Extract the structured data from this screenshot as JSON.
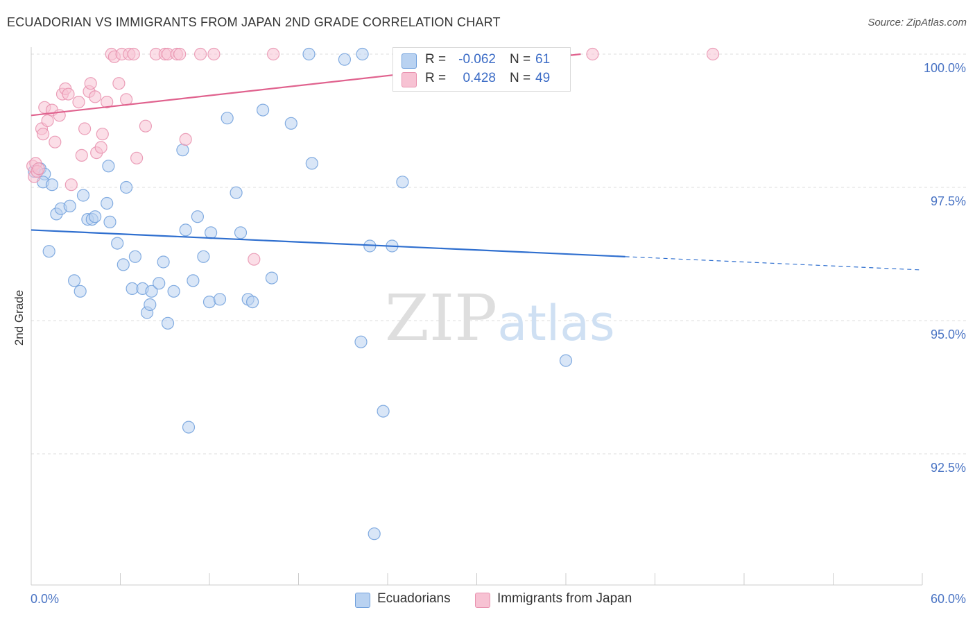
{
  "title": "ECUADORIAN VS IMMIGRANTS FROM JAPAN 2ND GRADE CORRELATION CHART",
  "source": "Source: ZipAtlas.com",
  "watermark": {
    "zip": "ZIP",
    "atlas": "atlas"
  },
  "legend": {
    "rows": [
      {
        "r_label": "R =",
        "r_value": "-0.062",
        "n_label": "N =",
        "n_value": "61"
      },
      {
        "r_label": "R =",
        "r_value": "0.428",
        "n_label": "N =",
        "n_value": "49"
      }
    ]
  },
  "bottom_legend": [
    "Ecuadorians",
    "Immigrants from Japan"
  ],
  "colors": {
    "blue_fill": "#b9d2f1",
    "blue_edge": "#6f9fdc",
    "blue_line": "#2f6fcf",
    "pink_fill": "#f7c2d3",
    "pink_edge": "#e890ae",
    "pink_line": "#e0628e",
    "tick_text": "#4a74c4",
    "grid": "#dddddd"
  },
  "chart_data": {
    "type": "scatter",
    "title": "ECUADORIAN VS IMMIGRANTS FROM JAPAN 2ND GRADE CORRELATION CHART",
    "xlabel": "",
    "ylabel": "2nd Grade",
    "xlim": [
      0,
      60
    ],
    "ylim": [
      90.0,
      100.4
    ],
    "x_tick_labels": [
      "0.0%",
      "60.0%"
    ],
    "y_ticks": [
      92.5,
      95.0,
      97.5,
      100.0
    ],
    "y_tick_labels": [
      "92.5%",
      "95.0%",
      "97.5%",
      "100.0%"
    ],
    "grid": true,
    "legend_position": "top-center",
    "series": [
      {
        "name": "Ecuadorians",
        "R": -0.062,
        "N": 61,
        "trend": {
          "x0": 0,
          "y0": 96.7,
          "x1": 40.0,
          "y1": 96.2,
          "dashed_to_x": 60,
          "dashed_y": 95.95
        },
        "points": [
          [
            0.2,
            97.8
          ],
          [
            0.6,
            97.85
          ],
          [
            0.9,
            97.75
          ],
          [
            0.8,
            97.6
          ],
          [
            1.4,
            97.55
          ],
          [
            1.7,
            97.0
          ],
          [
            2.0,
            97.1
          ],
          [
            2.6,
            97.15
          ],
          [
            3.5,
            97.35
          ],
          [
            3.8,
            96.9
          ],
          [
            4.1,
            96.9
          ],
          [
            4.3,
            96.95
          ],
          [
            5.1,
            97.2
          ],
          [
            5.2,
            97.9
          ],
          [
            5.3,
            96.85
          ],
          [
            5.8,
            96.45
          ],
          [
            6.2,
            96.05
          ],
          [
            6.4,
            97.5
          ],
          [
            6.8,
            95.6
          ],
          [
            7.0,
            96.2
          ],
          [
            7.5,
            95.6
          ],
          [
            7.8,
            95.15
          ],
          [
            8.0,
            95.3
          ],
          [
            8.1,
            95.55
          ],
          [
            8.6,
            95.7
          ],
          [
            8.9,
            96.1
          ],
          [
            9.2,
            94.95
          ],
          [
            9.6,
            95.55
          ],
          [
            10.2,
            98.2
          ],
          [
            10.4,
            96.7
          ],
          [
            10.6,
            93.0
          ],
          [
            10.9,
            95.75
          ],
          [
            11.2,
            96.95
          ],
          [
            11.6,
            96.2
          ],
          [
            12.0,
            95.35
          ],
          [
            12.1,
            96.65
          ],
          [
            12.7,
            95.4
          ],
          [
            13.2,
            98.8
          ],
          [
            13.8,
            97.4
          ],
          [
            14.1,
            96.65
          ],
          [
            14.6,
            95.4
          ],
          [
            14.9,
            95.35
          ],
          [
            15.6,
            98.95
          ],
          [
            16.2,
            95.8
          ],
          [
            17.5,
            98.7
          ],
          [
            18.7,
            100.0
          ],
          [
            18.9,
            97.95
          ],
          [
            21.1,
            99.9
          ],
          [
            22.2,
            94.6
          ],
          [
            22.3,
            100.0
          ],
          [
            22.8,
            96.4
          ],
          [
            23.1,
            91.0
          ],
          [
            23.7,
            93.3
          ],
          [
            24.3,
            96.4
          ],
          [
            25.0,
            97.6
          ],
          [
            26.3,
            99.65
          ],
          [
            28.6,
            99.75
          ],
          [
            36.0,
            94.25
          ],
          [
            1.2,
            96.3
          ],
          [
            2.9,
            95.75
          ],
          [
            3.3,
            95.55
          ]
        ]
      },
      {
        "name": "Immigrants from Japan",
        "R": 0.428,
        "N": 49,
        "trend": {
          "x0": 0,
          "y0": 98.85,
          "x1": 37.0,
          "y1": 100.0
        },
        "points": [
          [
            0.1,
            97.9
          ],
          [
            0.2,
            97.7
          ],
          [
            0.3,
            97.95
          ],
          [
            0.4,
            97.8
          ],
          [
            0.5,
            97.85
          ],
          [
            0.7,
            98.6
          ],
          [
            0.8,
            98.5
          ],
          [
            0.9,
            99.0
          ],
          [
            1.1,
            98.75
          ],
          [
            1.4,
            98.95
          ],
          [
            1.6,
            98.35
          ],
          [
            1.9,
            98.85
          ],
          [
            2.1,
            99.25
          ],
          [
            2.3,
            99.35
          ],
          [
            2.5,
            99.25
          ],
          [
            2.7,
            97.55
          ],
          [
            3.2,
            99.1
          ],
          [
            3.4,
            98.1
          ],
          [
            3.6,
            98.6
          ],
          [
            3.9,
            99.3
          ],
          [
            4.0,
            99.45
          ],
          [
            4.3,
            99.2
          ],
          [
            4.4,
            98.15
          ],
          [
            4.7,
            98.25
          ],
          [
            4.8,
            98.5
          ],
          [
            5.1,
            99.1
          ],
          [
            5.4,
            100.0
          ],
          [
            5.6,
            99.95
          ],
          [
            5.9,
            99.45
          ],
          [
            6.1,
            100.0
          ],
          [
            6.4,
            99.15
          ],
          [
            6.6,
            100.0
          ],
          [
            6.9,
            100.0
          ],
          [
            7.1,
            98.05
          ],
          [
            7.7,
            98.65
          ],
          [
            8.4,
            100.0
          ],
          [
            9.0,
            100.0
          ],
          [
            9.2,
            100.0
          ],
          [
            9.8,
            100.0
          ],
          [
            10.0,
            100.0
          ],
          [
            10.4,
            98.4
          ],
          [
            11.4,
            100.0
          ],
          [
            12.3,
            100.0
          ],
          [
            15.0,
            96.15
          ],
          [
            16.3,
            100.0
          ],
          [
            26.8,
            100.0
          ],
          [
            31.8,
            100.0
          ],
          [
            37.8,
            100.0
          ],
          [
            45.9,
            100.0
          ]
        ]
      }
    ]
  }
}
